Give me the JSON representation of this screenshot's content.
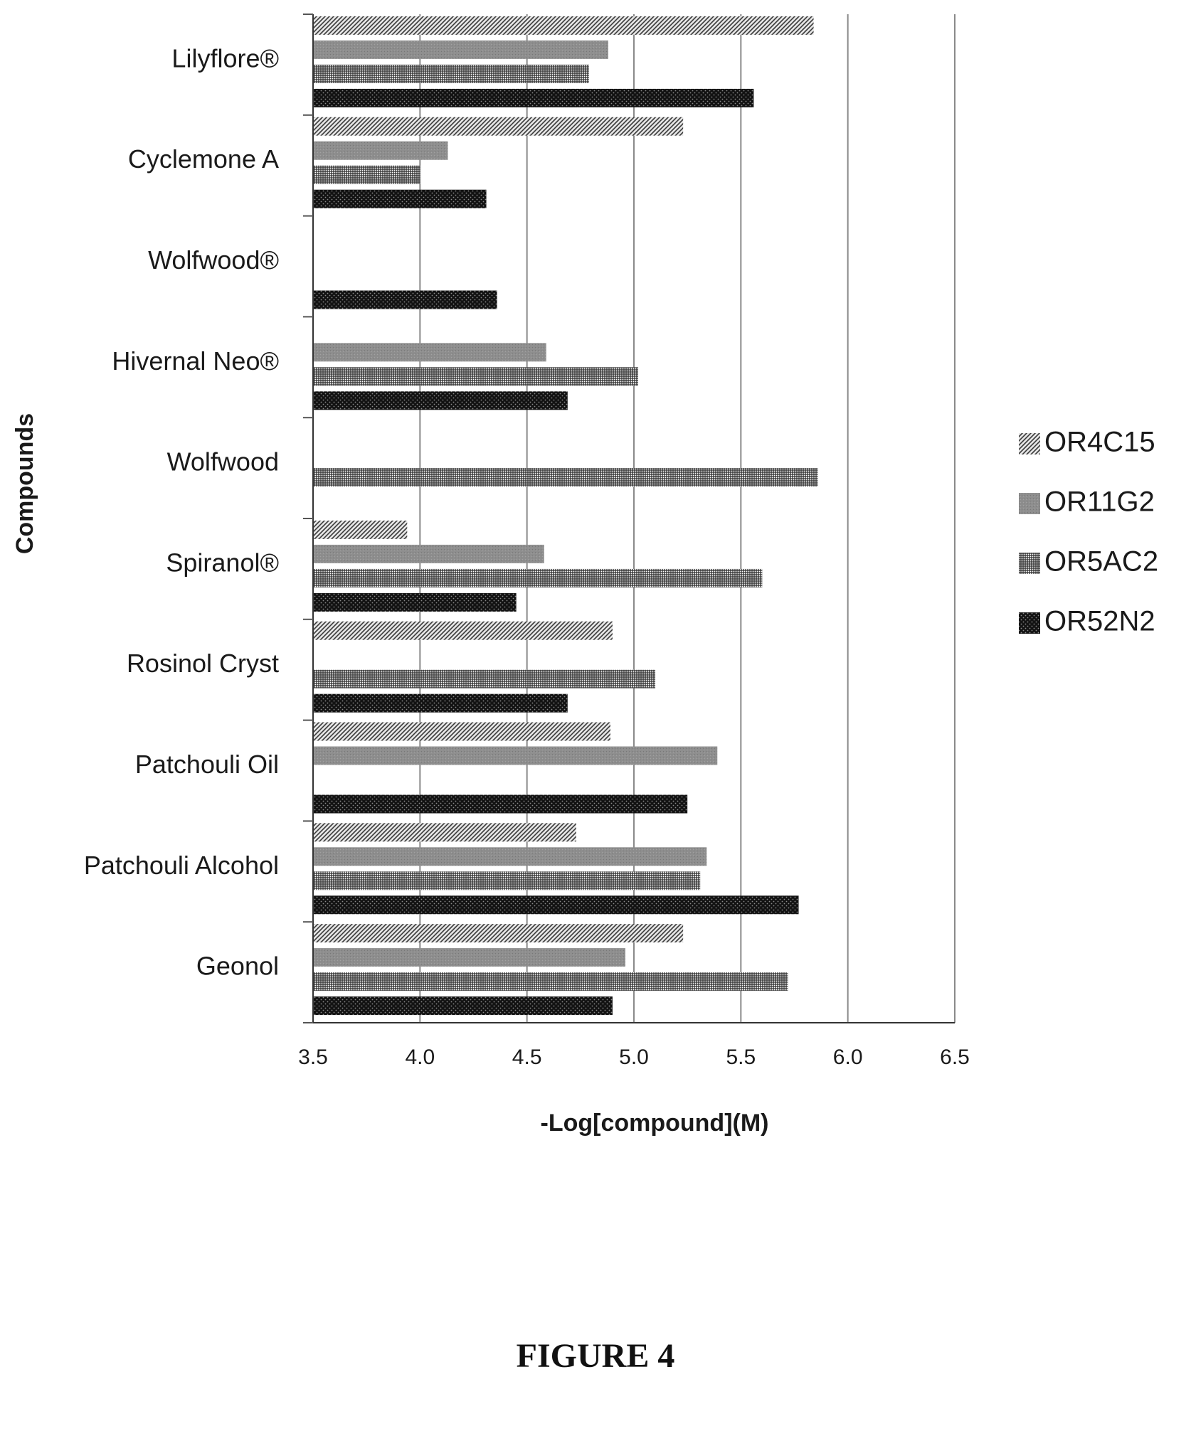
{
  "figure_caption": "FIGURE 4",
  "chart_data": {
    "type": "bar",
    "orientation": "horizontal",
    "title": "",
    "xlabel": "-Log[compound](M)",
    "ylabel": "Compounds",
    "xlim": [
      3.5,
      6.5
    ],
    "xticks": [
      "3.5",
      "4.0",
      "4.5",
      "5.0",
      "5.5",
      "6.0",
      "6.5"
    ],
    "grid": "vertical",
    "legend_position": "right",
    "categories": [
      "Lilyflore®",
      "Cyclemone A",
      "Wolfwood®",
      "Hivernal Neo®",
      "Wolfwood",
      "Spiranol®",
      "Rosinol Cryst",
      "Patchouli Oil",
      "Patchouli Alcohol",
      "Geonol"
    ],
    "series": [
      {
        "name": "OR4C15",
        "pattern": "diagonal-hatch",
        "color": "#9a9a9a",
        "values": [
          5.84,
          5.23,
          null,
          null,
          null,
          3.94,
          4.9,
          4.89,
          4.73,
          5.23
        ]
      },
      {
        "name": "OR11G2",
        "pattern": "solid-gray",
        "color": "#8c8c8c",
        "values": [
          4.88,
          4.13,
          null,
          4.59,
          null,
          4.58,
          null,
          5.39,
          5.34,
          4.96
        ]
      },
      {
        "name": "OR5AC2",
        "pattern": "grid-hatch",
        "color": "#555555",
        "values": [
          4.79,
          4.0,
          null,
          5.02,
          5.86,
          5.6,
          5.1,
          null,
          5.31,
          5.72
        ]
      },
      {
        "name": "OR52N2",
        "pattern": "dark-dotted",
        "color": "#111111",
        "values": [
          5.56,
          4.31,
          4.36,
          4.69,
          null,
          4.45,
          4.69,
          5.25,
          5.77,
          4.9
        ]
      }
    ]
  }
}
